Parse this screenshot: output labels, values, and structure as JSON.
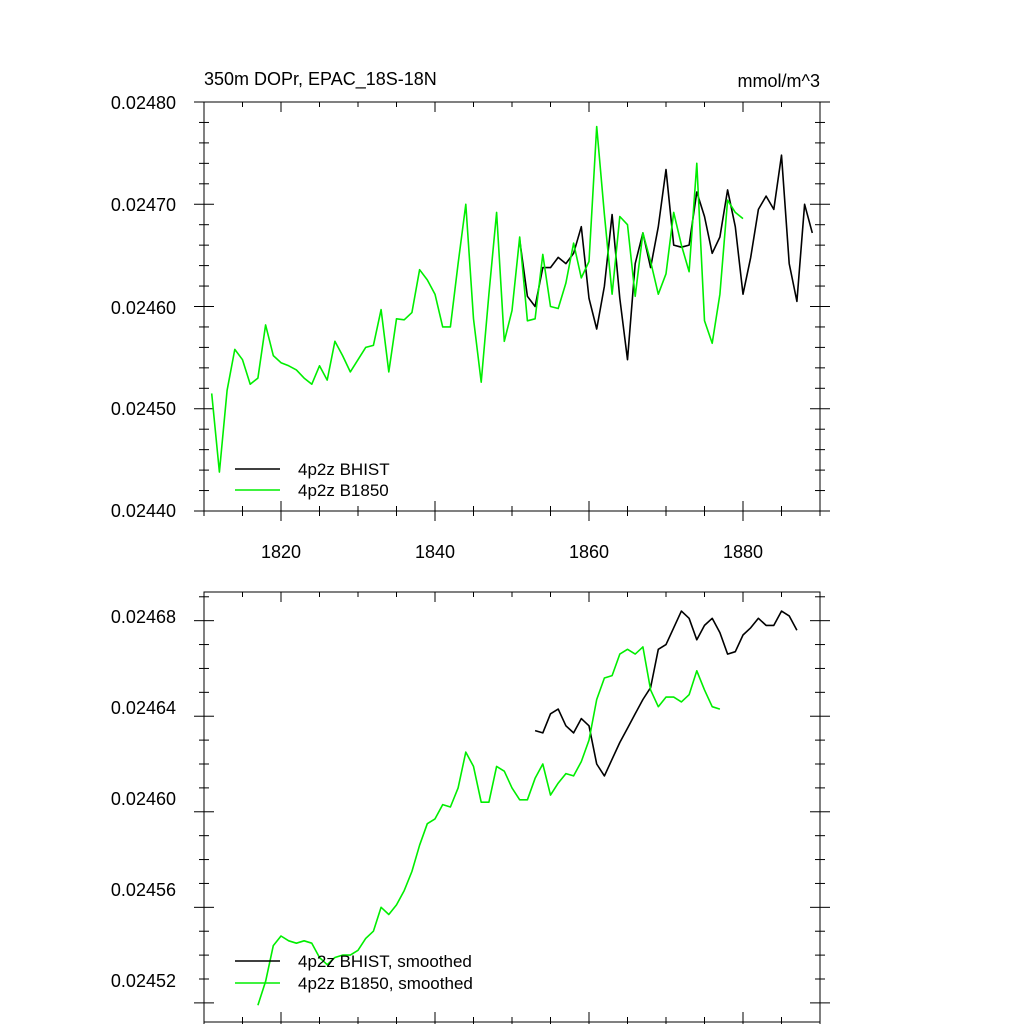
{
  "chart_data": [
    {
      "type": "line",
      "title_left": "350m DOPr, EPAC_18S-18N",
      "title_right": "mmol/m^3",
      "xlabel": "",
      "ylabel": "",
      "xlim": [
        1810,
        1890
      ],
      "ylim": [
        0.0244,
        0.0248
      ],
      "yticks": [
        "0.02440",
        "0.02450",
        "0.02460",
        "0.02470",
        "0.02480"
      ],
      "xticks": [
        "1820",
        "1840",
        "1860",
        "1880"
      ],
      "legend_position": "bottom-left",
      "series": [
        {
          "name": "4p2z BHIST",
          "color": "#000000",
          "x": [
            1851,
            1852,
            1853,
            1854,
            1855,
            1856,
            1857,
            1858,
            1859,
            1860,
            1861,
            1862,
            1863,
            1864,
            1865,
            1866,
            1867,
            1868,
            1869,
            1870,
            1871,
            1872,
            1873,
            1874,
            1875,
            1876,
            1877,
            1878,
            1879,
            1880,
            1881,
            1882,
            1883,
            1884,
            1885,
            1886,
            1887,
            1888,
            1889
          ],
          "values": [
            0.024665,
            0.02461,
            0.0246,
            0.024638,
            0.024638,
            0.024648,
            0.024642,
            0.024652,
            0.024678,
            0.024608,
            0.024578,
            0.02462,
            0.02469,
            0.024608,
            0.024548,
            0.024642,
            0.024672,
            0.024638,
            0.024678,
            0.024734,
            0.02466,
            0.024658,
            0.02466,
            0.024712,
            0.024688,
            0.024652,
            0.024668,
            0.024714,
            0.024678,
            0.024612,
            0.024648,
            0.024695,
            0.024708,
            0.024695,
            0.024748,
            0.024642,
            0.024605,
            0.0247,
            0.024672
          ]
        },
        {
          "name": "4p2z B1850",
          "color": "#00ee00",
          "x": [
            1811,
            1812,
            1813,
            1814,
            1815,
            1816,
            1817,
            1818,
            1819,
            1820,
            1821,
            1822,
            1823,
            1824,
            1825,
            1826,
            1827,
            1828,
            1829,
            1830,
            1831,
            1832,
            1833,
            1834,
            1835,
            1836,
            1837,
            1838,
            1839,
            1840,
            1841,
            1842,
            1843,
            1844,
            1845,
            1846,
            1847,
            1848,
            1849,
            1850,
            1851,
            1852,
            1853,
            1854,
            1855,
            1856,
            1857,
            1858,
            1859,
            1860,
            1861,
            1862,
            1863,
            1864,
            1865,
            1866,
            1867,
            1868,
            1869,
            1870,
            1871,
            1872,
            1873,
            1874,
            1875,
            1876,
            1877,
            1878,
            1879,
            1880
          ],
          "values": [
            0.024515,
            0.024438,
            0.024518,
            0.024558,
            0.024548,
            0.024524,
            0.02453,
            0.024582,
            0.024552,
            0.024545,
            0.024542,
            0.024538,
            0.02453,
            0.024524,
            0.024542,
            0.024528,
            0.024566,
            0.024552,
            0.024536,
            0.024548,
            0.02456,
            0.024562,
            0.024597,
            0.024536,
            0.024588,
            0.024587,
            0.024594,
            0.024636,
            0.024626,
            0.024612,
            0.02458,
            0.02458,
            0.024642,
            0.0247,
            0.024588,
            0.024526,
            0.024612,
            0.024692,
            0.024566,
            0.024596,
            0.024668,
            0.024586,
            0.024588,
            0.024651,
            0.0246,
            0.024598,
            0.024623,
            0.024662,
            0.024628,
            0.024644,
            0.024776,
            0.02469,
            0.024612,
            0.024688,
            0.02468,
            0.02461,
            0.024672,
            0.024644,
            0.024612,
            0.024632,
            0.024692,
            0.02466,
            0.024634,
            0.02474,
            0.024586,
            0.024564,
            0.024612,
            0.024704,
            0.024692,
            0.024686
          ]
        }
      ]
    },
    {
      "type": "line",
      "xlim": [
        1810,
        1890
      ],
      "ylim": [
        0.024512,
        0.024692
      ],
      "yticks": [
        "0.02452",
        "0.02456",
        "0.02460",
        "0.02464",
        "0.02468"
      ],
      "legend_position": "bottom-left",
      "series": [
        {
          "name": "4p2z BHIST, smoothed",
          "color": "#000000",
          "x": [
            1853,
            1854,
            1855,
            1856,
            1857,
            1858,
            1859,
            1860,
            1861,
            1862,
            1863,
            1864,
            1865,
            1866,
            1867,
            1868,
            1869,
            1870,
            1871,
            1872,
            1873,
            1874,
            1875,
            1876,
            1877,
            1878,
            1879,
            1880,
            1881,
            1882,
            1883,
            1884,
            1885,
            1886,
            1887
          ],
          "values": [
            0.024634,
            0.024633,
            0.024641,
            0.024643,
            0.024636,
            0.024633,
            0.024639,
            0.024636,
            0.02462,
            0.024615,
            0.024622,
            0.024629,
            0.024635,
            0.024641,
            0.024647,
            0.024652,
            0.024668,
            0.02467,
            0.024677,
            0.024684,
            0.024681,
            0.024672,
            0.024678,
            0.024681,
            0.024675,
            0.024666,
            0.024667,
            0.024674,
            0.024677,
            0.024681,
            0.024678,
            0.024678,
            0.024684,
            0.024682,
            0.024676
          ]
        },
        {
          "name": "4p2z B1850, smoothed",
          "color": "#00ee00",
          "x": [
            1817,
            1818,
            1819,
            1820,
            1821,
            1822,
            1823,
            1824,
            1825,
            1826,
            1827,
            1828,
            1829,
            1830,
            1831,
            1832,
            1833,
            1834,
            1835,
            1836,
            1837,
            1838,
            1839,
            1840,
            1841,
            1842,
            1843,
            1844,
            1845,
            1846,
            1847,
            1848,
            1849,
            1850,
            1851,
            1852,
            1853,
            1854,
            1855,
            1856,
            1857,
            1858,
            1859,
            1860,
            1861,
            1862,
            1863,
            1864,
            1865,
            1866,
            1867,
            1868,
            1869,
            1870,
            1871,
            1872,
            1873,
            1874,
            1875,
            1876,
            1877
          ],
          "values": [
            0.024519,
            0.024529,
            0.024544,
            0.024548,
            0.024546,
            0.024545,
            0.024546,
            0.024545,
            0.024539,
            0.024536,
            0.024539,
            0.02454,
            0.02454,
            0.024542,
            0.024547,
            0.02455,
            0.02456,
            0.024557,
            0.024561,
            0.024567,
            0.024575,
            0.024586,
            0.024595,
            0.024597,
            0.024603,
            0.024602,
            0.02461,
            0.024625,
            0.024619,
            0.024604,
            0.024604,
            0.024619,
            0.024617,
            0.02461,
            0.024605,
            0.024605,
            0.024614,
            0.02462,
            0.024607,
            0.024612,
            0.024616,
            0.024615,
            0.024621,
            0.02463,
            0.024647,
            0.024656,
            0.024657,
            0.024666,
            0.024668,
            0.024666,
            0.024669,
            0.024651,
            0.024644,
            0.024648,
            0.024648,
            0.024646,
            0.024649,
            0.024659,
            0.024651,
            0.024644,
            0.024643
          ]
        }
      ]
    }
  ]
}
